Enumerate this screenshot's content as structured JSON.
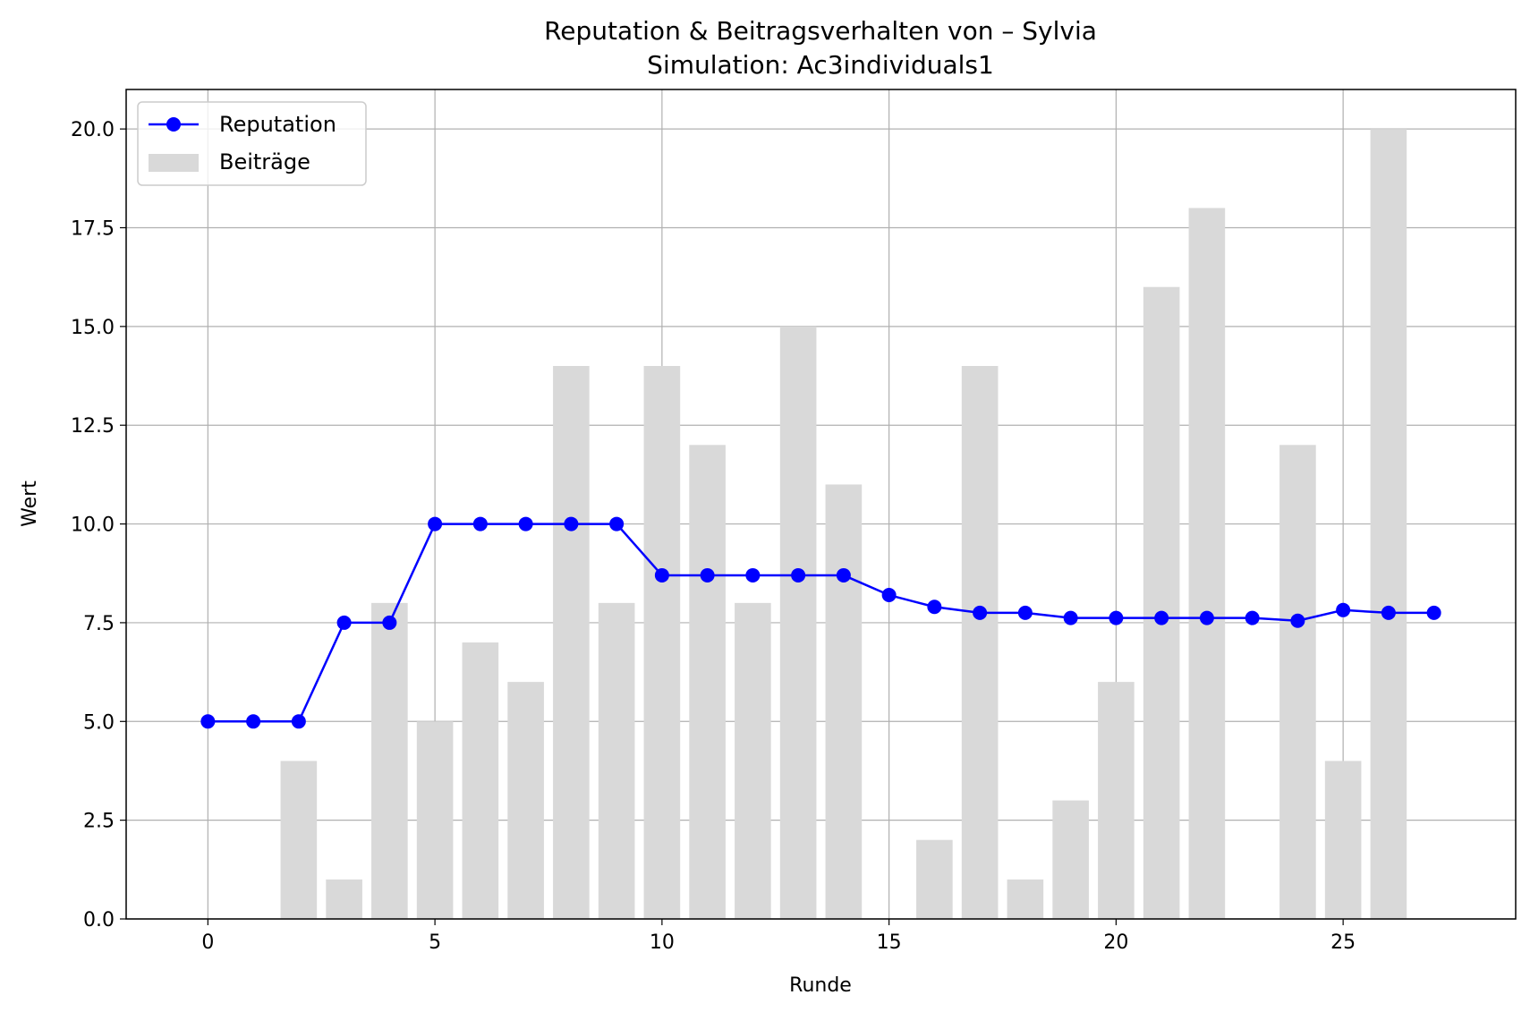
{
  "chart_data": {
    "type": "bar",
    "title": "Reputation & Beitragsverhalten von – Sylvia",
    "subtitle": "Simulation: Ac3individuals1",
    "xlabel": "Runde",
    "ylabel": "Wert",
    "xlim": [
      -1.8,
      28.8
    ],
    "ylim": [
      0,
      21
    ],
    "xticks": [
      0,
      5,
      10,
      15,
      20,
      25
    ],
    "xtick_labels": [
      "0",
      "5",
      "10",
      "15",
      "20",
      "25"
    ],
    "yticks": [
      0,
      2.5,
      5,
      7.5,
      10,
      12.5,
      15,
      17.5,
      20
    ],
    "ytick_labels": [
      "0.0",
      "2.5",
      "5.0",
      "7.5",
      "10.0",
      "12.5",
      "15.0",
      "17.5",
      "20.0"
    ],
    "grid": true,
    "legend_position": "top-left",
    "x": [
      0,
      1,
      2,
      3,
      4,
      5,
      6,
      7,
      8,
      9,
      10,
      11,
      12,
      13,
      14,
      15,
      16,
      17,
      18,
      19,
      20,
      21,
      22,
      23,
      24,
      25,
      26,
      27
    ],
    "series": [
      {
        "name": "Reputation",
        "type": "line",
        "color": "#0000ff",
        "marker": "circle",
        "values": [
          5,
          5,
          5,
          7.5,
          7.5,
          10,
          10,
          10,
          10,
          10,
          8.7,
          8.7,
          8.7,
          8.7,
          8.7,
          8.2,
          7.9,
          7.75,
          7.75,
          7.62,
          7.62,
          7.62,
          7.62,
          7.62,
          7.55,
          7.82,
          7.75,
          7.75
        ]
      },
      {
        "name": "Beiträge",
        "type": "bar",
        "color": "#d9d9d9",
        "values": [
          0,
          0,
          4,
          1,
          8,
          5,
          7,
          6,
          14,
          8,
          14,
          12,
          8,
          15,
          11,
          0,
          2,
          14,
          1,
          3,
          6,
          16,
          18,
          0,
          12,
          4,
          20,
          0
        ]
      }
    ]
  }
}
